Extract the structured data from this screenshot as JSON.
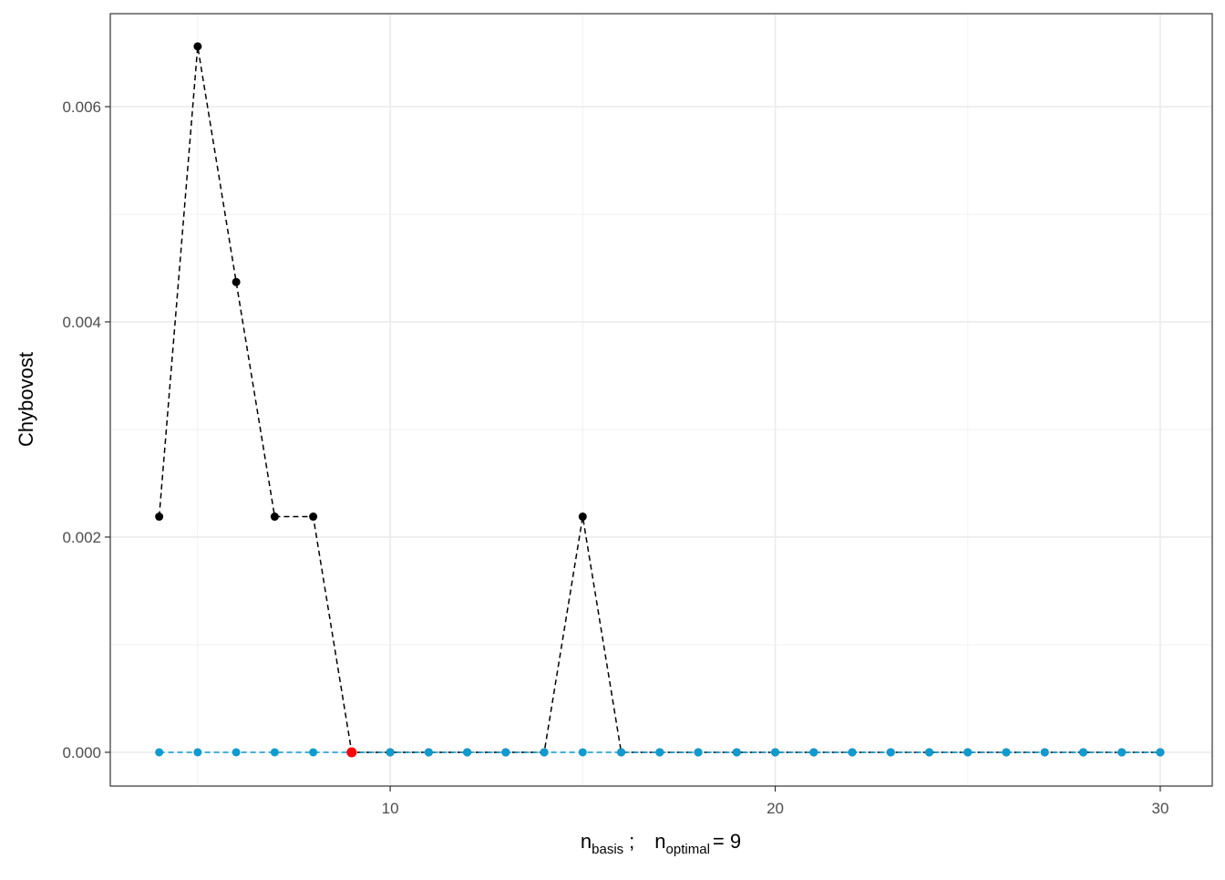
{
  "chart_data": {
    "type": "line",
    "ylabel": "Chybovost",
    "xlabel": {
      "base1": "n",
      "sub1": "basis",
      "sep": ";",
      "base2": "n",
      "sub2": "optimal",
      "eq": "= 9"
    },
    "xlim": [
      2.73,
      31.35
    ],
    "xticks": [
      10,
      20,
      30
    ],
    "x_minor_grid": [
      5,
      15,
      25
    ],
    "ylim": [
      -0.000314,
      0.006864
    ],
    "yticks": [
      {
        "value": 0,
        "label": "0.000"
      },
      0.002,
      0.004,
      0.006
    ],
    "y_minor_grid": [
      0.001,
      0.003,
      0.005
    ],
    "grid": true,
    "series": [
      {
        "color": "#000000",
        "line_style": "dashed",
        "x": [
          4,
          5,
          6,
          7,
          8,
          9,
          10,
          11,
          12,
          13,
          14,
          15,
          16,
          17,
          18,
          19,
          20,
          21,
          22,
          23,
          24,
          25,
          26,
          27,
          28,
          29,
          30
        ],
        "values": [
          0.00219,
          0.00656,
          0.00437,
          0.00219,
          0.00219,
          0,
          0,
          0,
          0,
          0,
          0,
          0.00219,
          0,
          0,
          0,
          0,
          0,
          0,
          0,
          0,
          0,
          0,
          0,
          0,
          0,
          0,
          0
        ]
      },
      {
        "color": "#0f9bd0",
        "line_style": "dashed",
        "x": [
          4,
          5,
          6,
          7,
          8,
          9,
          10,
          11,
          12,
          13,
          14,
          15,
          16,
          17,
          18,
          19,
          20,
          21,
          22,
          23,
          24,
          25,
          26,
          27,
          28,
          29,
          30
        ],
        "values": [
          0,
          0,
          0,
          0,
          0,
          0,
          0,
          0,
          0,
          0,
          0,
          0,
          0,
          0,
          0,
          0,
          0,
          0,
          0,
          0,
          0,
          0,
          0,
          0,
          0,
          0,
          0
        ]
      },
      {
        "color": "#ff0000",
        "line_style": "none",
        "x": [
          9
        ],
        "values": [
          0
        ]
      }
    ]
  }
}
